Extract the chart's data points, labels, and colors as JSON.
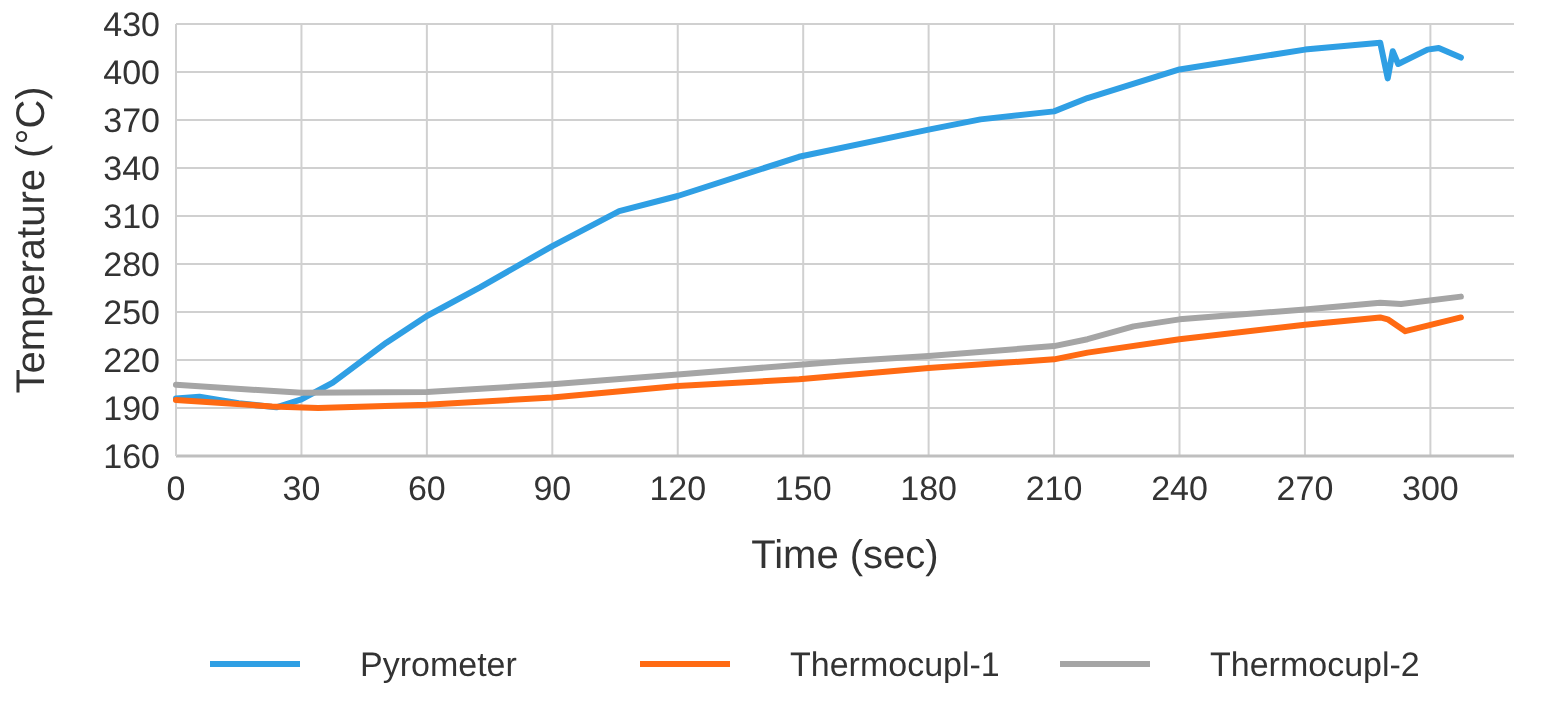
{
  "chart_data": {
    "type": "line",
    "xlabel": "Time (sec)",
    "ylabel": "Temperature (°C)",
    "xlim": [
      0,
      320
    ],
    "ylim": [
      160,
      430
    ],
    "xticks": [
      0,
      30,
      60,
      90,
      120,
      150,
      180,
      210,
      240,
      270,
      300
    ],
    "yticks": [
      160,
      190,
      220,
      250,
      280,
      310,
      340,
      370,
      400,
      430
    ],
    "grid": true,
    "legend": "bottom",
    "marker": "none",
    "line_style": "solid",
    "series": [
      {
        "name": "Pyrometer",
        "color": "#2f9fe4",
        "x": [
          0,
          5.6,
          15,
          24,
          30,
          37.5,
          50.3,
          60,
          72.7,
          90,
          106,
          120,
          149,
          180,
          192.4,
          210,
          218,
          240,
          270,
          288,
          289.8,
          291,
          292.3,
          299.3,
          302,
          307.3
        ],
        "values": [
          196,
          197,
          193,
          190.4,
          195.4,
          205.8,
          230.8,
          247.5,
          265.4,
          291.2,
          313,
          322.5,
          347,
          364,
          370.4,
          375.4,
          383.7,
          401.6,
          414,
          418.3,
          396,
          413,
          405,
          414,
          415,
          409
        ]
      },
      {
        "name": "Thermocupl-1",
        "color": "#ff6a13",
        "x": [
          0,
          23,
          34,
          60,
          90,
          120,
          149,
          180,
          210,
          218,
          240,
          270,
          288,
          289.8,
          294,
          307.3
        ],
        "values": [
          195,
          191,
          190,
          192,
          196.6,
          203.7,
          208,
          215,
          220.4,
          224.6,
          233,
          242,
          246.6,
          245.4,
          238,
          246.6
        ]
      },
      {
        "name": "Thermocupl-2",
        "color": "#a5a5a5",
        "x": [
          0,
          30,
          60,
          90,
          120,
          159,
          180,
          210,
          218,
          229,
          240,
          270,
          288,
          293,
          307.3
        ],
        "values": [
          204.5,
          199.5,
          200,
          204.8,
          211,
          219,
          222.5,
          228.7,
          233,
          241,
          245.4,
          251.6,
          255.8,
          255,
          259.6
        ]
      }
    ]
  }
}
